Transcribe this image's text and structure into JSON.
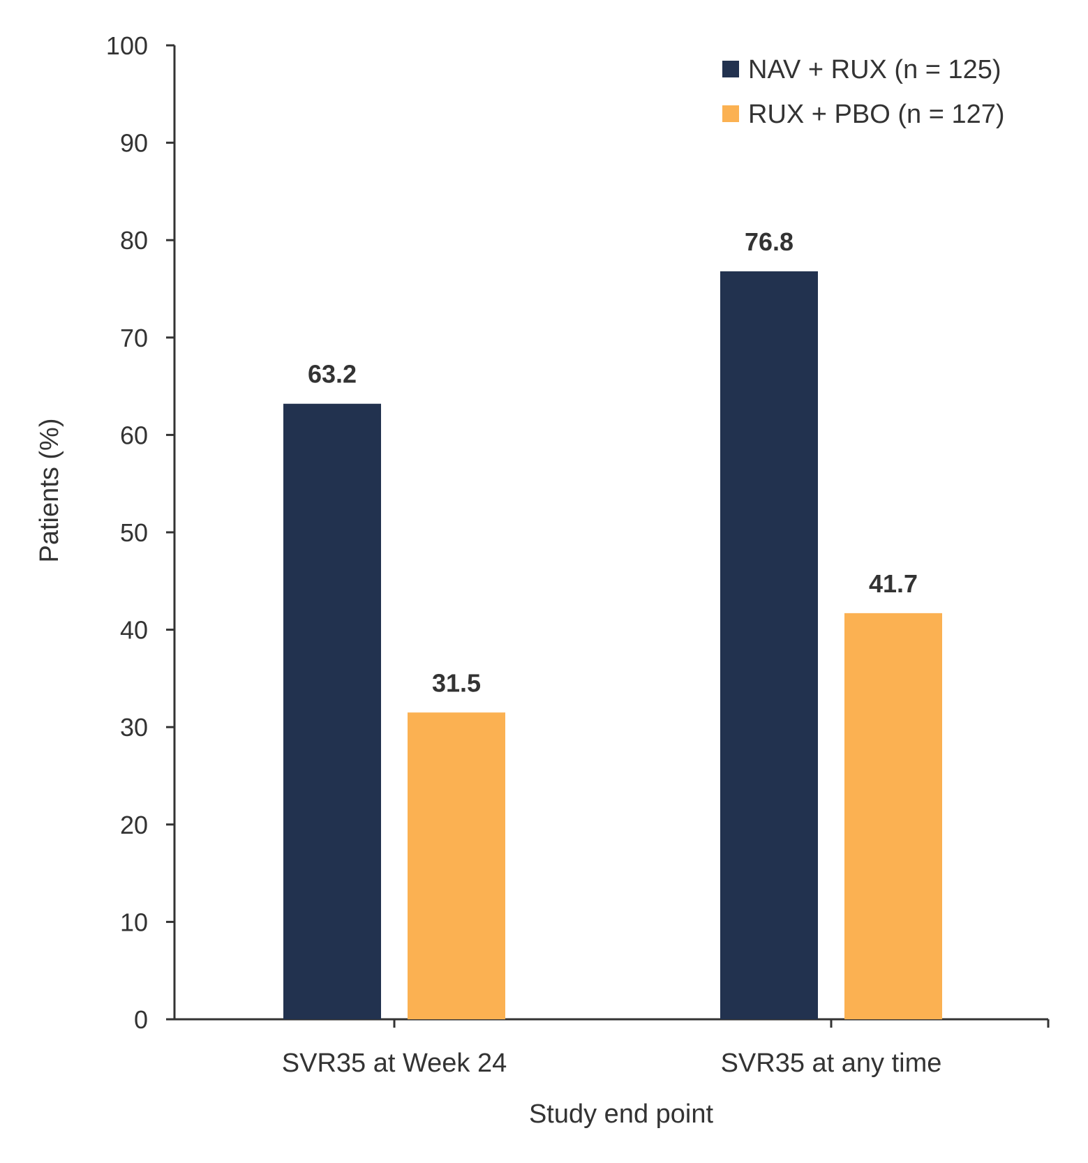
{
  "chart_data": {
    "type": "bar",
    "categories": [
      "SVR35 at Week 24",
      "SVR35 at any time"
    ],
    "series": [
      {
        "name": "NAV + RUX (n = 125)",
        "values": [
          63.2,
          76.8
        ],
        "color": "#22324f"
      },
      {
        "name": "RUX + PBO (n = 127)",
        "values": [
          31.5,
          41.7
        ],
        "color": "#fbb152"
      }
    ],
    "data_labels": [
      [
        "63.2",
        "76.8"
      ],
      [
        "31.5",
        "41.7"
      ]
    ],
    "xlabel": "Study end point",
    "ylabel": "Patients (%)",
    "ylim": [
      0,
      100
    ],
    "yticks": [
      0,
      10,
      20,
      30,
      40,
      50,
      60,
      70,
      80,
      90,
      100
    ],
    "grid": false,
    "legend_position": "top-right"
  }
}
